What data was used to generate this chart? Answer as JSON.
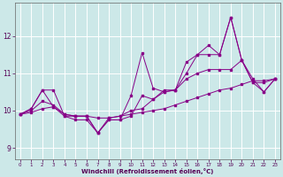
{
  "x": [
    0,
    1,
    2,
    3,
    4,
    5,
    6,
    7,
    8,
    9,
    10,
    11,
    12,
    13,
    14,
    15,
    16,
    17,
    18,
    19,
    20,
    21,
    22,
    23
  ],
  "line1": [
    9.9,
    10.05,
    10.55,
    10.55,
    9.85,
    9.85,
    9.85,
    9.4,
    9.75,
    9.75,
    10.4,
    11.55,
    10.6,
    10.5,
    10.55,
    11.3,
    11.5,
    11.75,
    11.5,
    12.5,
    11.35,
    10.75,
    10.75,
    10.85
  ],
  "line2": [
    9.9,
    10.05,
    10.55,
    10.1,
    9.85,
    9.75,
    9.75,
    9.4,
    9.75,
    9.75,
    9.85,
    10.4,
    10.3,
    10.5,
    10.55,
    11.0,
    11.5,
    11.5,
    11.5,
    12.5,
    11.35,
    10.85,
    10.5,
    10.85
  ],
  "line3": [
    9.9,
    10.0,
    10.25,
    10.15,
    9.9,
    9.85,
    9.85,
    9.4,
    9.8,
    9.85,
    10.0,
    10.05,
    10.3,
    10.55,
    10.55,
    10.85,
    11.0,
    11.1,
    11.1,
    11.1,
    11.35,
    10.75,
    10.5,
    10.85
  ],
  "line4": [
    9.9,
    9.95,
    10.05,
    10.1,
    9.9,
    9.85,
    9.85,
    9.8,
    9.8,
    9.85,
    9.9,
    9.95,
    10.0,
    10.05,
    10.15,
    10.25,
    10.35,
    10.45,
    10.55,
    10.6,
    10.7,
    10.8,
    10.8,
    10.85
  ],
  "line_color": "#880088",
  "bg_color": "#cce8e8",
  "grid_color": "#b0d8d8",
  "xlabel": "Windchill (Refroidissement éolien,°C)",
  "yticks": [
    9,
    10,
    11,
    12
  ],
  "xticks": [
    0,
    1,
    2,
    3,
    4,
    5,
    6,
    7,
    8,
    9,
    10,
    11,
    12,
    13,
    14,
    15,
    16,
    17,
    18,
    19,
    20,
    21,
    22,
    23
  ],
  "ylim": [
    8.7,
    12.9
  ],
  "xlim": [
    -0.5,
    23.5
  ]
}
